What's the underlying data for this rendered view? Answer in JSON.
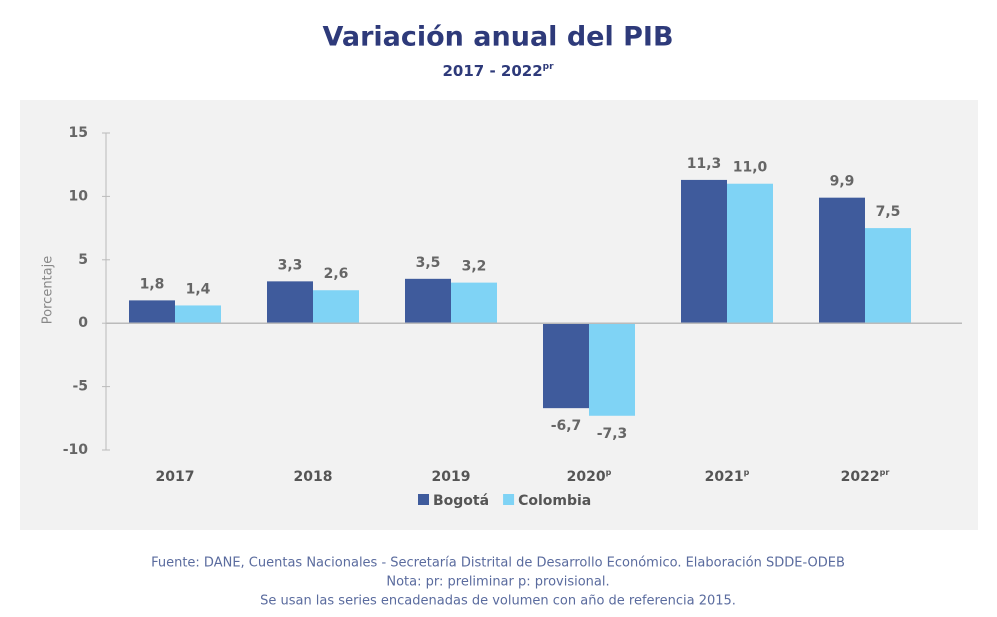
{
  "chart_data": {
    "type": "bar",
    "title": "Variación anual del PIB",
    "subtitle": "2017 - 2022",
    "subtitle_superscript": "pr",
    "y_label": "Porcentaje",
    "categories": [
      "2017",
      "2018",
      "2019",
      "2020",
      "2021",
      "2022"
    ],
    "category_superscripts": [
      null,
      null,
      null,
      "p",
      "p",
      "pr"
    ],
    "series": [
      {
        "name": "Bogotá",
        "color": "#3f5b9c",
        "values": [
          1.8,
          3.3,
          3.5,
          -6.7,
          11.3,
          9.9
        ],
        "value_labels": [
          "1,8",
          "3,3",
          "3,5",
          "-6,7",
          "11,3",
          "9,9"
        ]
      },
      {
        "name": "Colombia",
        "color": "#7fd3f5",
        "values": [
          1.4,
          2.6,
          3.2,
          -7.3,
          11.0,
          7.5
        ],
        "value_labels": [
          "1,4",
          "2,6",
          "3,2",
          "-7,3",
          "11,0",
          "7,5"
        ]
      }
    ],
    "ylim": [
      -10,
      15
    ],
    "yticks": [
      -10,
      -5,
      0,
      5,
      10,
      15
    ],
    "grid": false,
    "legend": "bottom",
    "notes": [
      "Fuente: DANE, Cuentas Nacionales - Secretaría Distrital de Desarrollo Económico. Elaboración SDDE-ODEB",
      "Nota: pr: preliminar  p: provisional.",
      "Se usan las series encadenadas de volumen con año de referencia 2015."
    ]
  }
}
